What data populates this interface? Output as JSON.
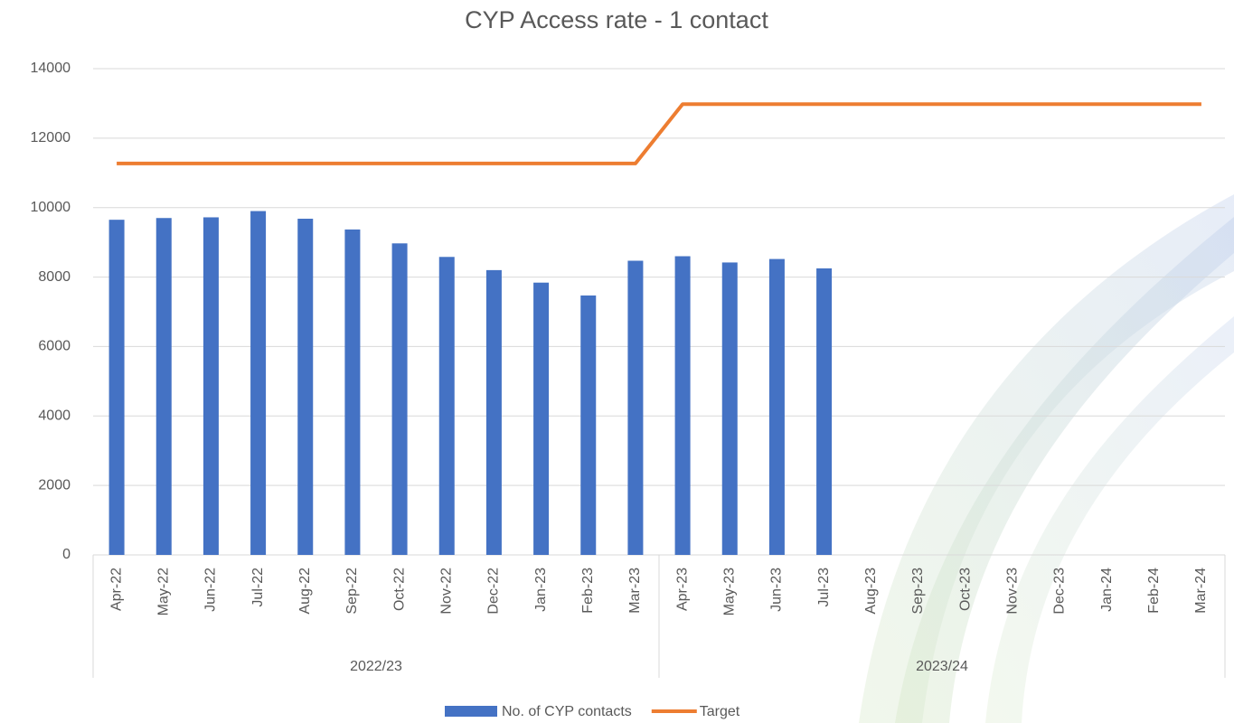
{
  "chart_data": {
    "type": "bar_line",
    "title": "CYP Access rate - 1 contact",
    "categories": [
      "Apr-22",
      "May-22",
      "Jun-22",
      "Jul-22",
      "Aug-22",
      "Sep-22",
      "Oct-22",
      "Nov-22",
      "Dec-22",
      "Jan-23",
      "Feb-23",
      "Mar-23",
      "Apr-23",
      "May-23",
      "Jun-23",
      "Jul-23",
      "Aug-23",
      "Sep-23",
      "Oct-23",
      "Nov-23",
      "Dec-23",
      "Jan-24",
      "Feb-24",
      "Mar-24"
    ],
    "category_groups": [
      "2022/23",
      "2023/24"
    ],
    "series": [
      {
        "name": "No. of CYP contacts",
        "type": "bar",
        "color": "#4472c4",
        "values": [
          9650,
          9700,
          9720,
          9900,
          9680,
          9370,
          8970,
          8580,
          8200,
          7840,
          7470,
          8470,
          8600,
          8420,
          8520,
          8250,
          null,
          null,
          null,
          null,
          null,
          null,
          null,
          null
        ]
      },
      {
        "name": "Target",
        "type": "line",
        "color": "#ed7d31",
        "values": [
          11270,
          11270,
          11270,
          11270,
          11270,
          11270,
          11270,
          11270,
          11270,
          11270,
          11270,
          11270,
          12980,
          12980,
          12980,
          12980,
          12980,
          12980,
          12980,
          12980,
          12980,
          12980,
          12980,
          12980
        ]
      }
    ],
    "ylim": [
      0,
      14000
    ],
    "yticks": [
      0,
      2000,
      4000,
      6000,
      8000,
      10000,
      12000,
      14000
    ],
    "grid": true,
    "legend": "bottom"
  }
}
